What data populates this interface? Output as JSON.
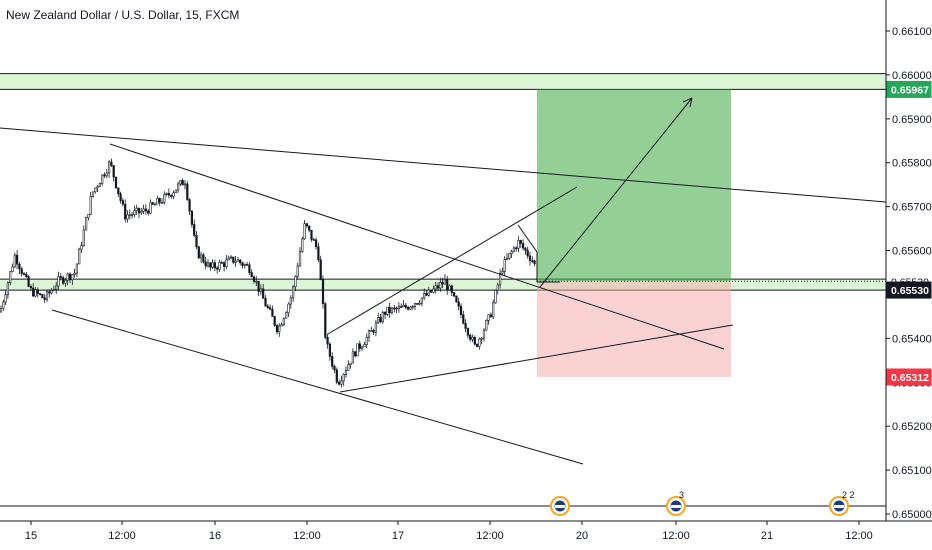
{
  "chart_data": {
    "type": "candlestick",
    "title": "New Zealand Dollar / U.S. Dollar, 15, FXCM",
    "y_ticks": [
      "0.66100",
      "0.66000",
      "0.65900",
      "0.65800",
      "0.65700",
      "0.65600",
      "0.65500",
      "0.65400",
      "0.65300",
      "0.65200",
      "0.65100",
      "0.65000"
    ],
    "ylim": [
      0.6499,
      0.6615
    ],
    "x_ticks": [
      "15",
      "12:00",
      "16",
      "12:00",
      "17",
      "12:00",
      "20",
      "12:00",
      "21",
      "12:00"
    ],
    "price_badges": [
      {
        "label": "0.65967",
        "value": 0.65967,
        "color": "#26a65b",
        "text_color": "#ffffff"
      },
      {
        "label": "0.65530",
        "value": 0.6553,
        "color": "#ffffff",
        "text_color": "#131722"
      },
      {
        "label": "0.65530",
        "value": 0.6551,
        "color": "#131722",
        "text_color": "#ffffff"
      },
      {
        "label": "0.65312",
        "value": 0.65312,
        "color": "#f23645",
        "text_color": "#ffffff"
      }
    ],
    "zones": [
      {
        "name": "resistance-zone",
        "from": 0.65967,
        "to": 0.66003,
        "color": "#dcf7d6"
      },
      {
        "name": "support-zone",
        "from": 0.6551,
        "to": 0.65535,
        "color": "#dcf7d6"
      }
    ],
    "position": {
      "entry": 0.6553,
      "target": 0.65967,
      "stop": 0.65312
    },
    "grid": false,
    "events": [
      {
        "label": ""
      },
      {
        "label": "3"
      },
      {
        "label": "2 2"
      }
    ]
  }
}
